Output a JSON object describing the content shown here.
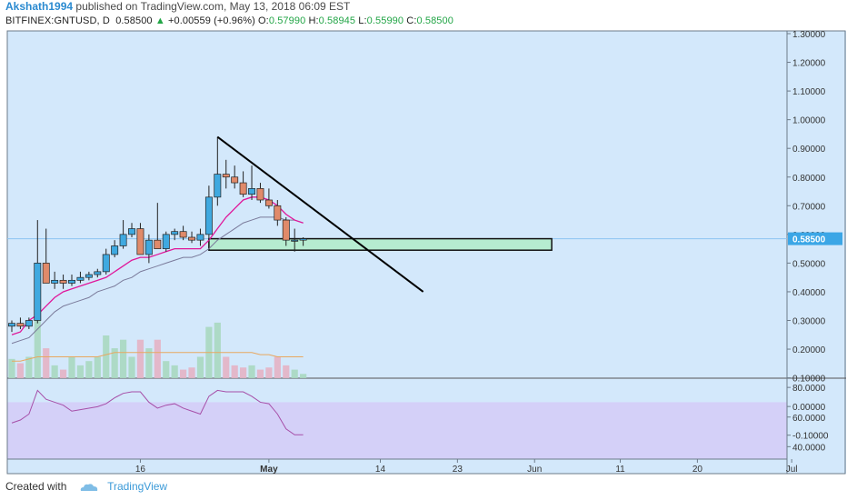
{
  "header": {
    "author": "Akshath1994",
    "published_text": "published on TradingView.com, May 13, 2018 06:09 EST",
    "symbol": "BITFINEX:GNTUSD, D",
    "last": "0.58500",
    "change_arrow": "▲",
    "change": "+0.00559 (+0.96%)",
    "open_label": "O:",
    "open": "0.57990",
    "high_label": "H:",
    "high": "0.58945",
    "low_label": "L:",
    "low": "0.55990",
    "close_label": "C:",
    "close": "0.58500"
  },
  "footer": {
    "created_with": "Created with",
    "brand": "TradingView"
  },
  "colors": {
    "bg": "#d3e8fb",
    "rsi_band": "#d4d0f8",
    "up": "#3fa9e0",
    "down": "#e08a6a",
    "vol_up": "#a8d8c0",
    "vol_down": "#e4b2c4",
    "ema": "#e0179a",
    "sma": "#7a7a9a",
    "rsi": "#a64fa8",
    "zone": "#b6ecd0",
    "price_tag": "#3ba6e6"
  },
  "chart_data": {
    "type": "candlestick",
    "price_axis": {
      "ticks": [
        "1.30000",
        "1.20000",
        "1.10000",
        "1.00000",
        "0.90000",
        "0.80000",
        "0.70000",
        "0.60000",
        "0.50000",
        "0.40000",
        "0.30000",
        "0.20000",
        "0.10000",
        "0.00000",
        "-0.10000"
      ],
      "current": "0.58500"
    },
    "rsi_axis": {
      "ticks": [
        "80.0000",
        "60.0000",
        "40.0000"
      ],
      "band": [
        30,
        70
      ]
    },
    "date_axis": [
      {
        "label": "16",
        "day": 16
      },
      {
        "label": "May",
        "day": 31
      },
      {
        "label": "14",
        "day": 44
      },
      {
        "label": "23",
        "day": 53
      },
      {
        "label": "Jun",
        "day": 62
      },
      {
        "label": "11",
        "day": 72
      },
      {
        "label": "20",
        "day": 81
      },
      {
        "label": "Jul",
        "day": 92
      }
    ],
    "start_date": "2018-04-01",
    "candles": [
      {
        "o": 0.28,
        "h": 0.3,
        "l": 0.26,
        "c": 0.29,
        "v": 0.045
      },
      {
        "o": 0.29,
        "h": 0.31,
        "l": 0.27,
        "c": 0.28,
        "v": 0.035
      },
      {
        "o": 0.28,
        "h": 0.31,
        "l": 0.27,
        "c": 0.3,
        "v": 0.05
      },
      {
        "o": 0.3,
        "h": 0.65,
        "l": 0.29,
        "c": 0.5,
        "v": 0.21
      },
      {
        "o": 0.5,
        "h": 0.62,
        "l": 0.43,
        "c": 0.43,
        "v": 0.07
      },
      {
        "o": 0.43,
        "h": 0.47,
        "l": 0.41,
        "c": 0.44,
        "v": 0.03
      },
      {
        "o": 0.44,
        "h": 0.46,
        "l": 0.41,
        "c": 0.43,
        "v": 0.02
      },
      {
        "o": 0.43,
        "h": 0.46,
        "l": 0.42,
        "c": 0.44,
        "v": 0.05
      },
      {
        "o": 0.44,
        "h": 0.47,
        "l": 0.43,
        "c": 0.45,
        "v": 0.03
      },
      {
        "o": 0.45,
        "h": 0.47,
        "l": 0.44,
        "c": 0.46,
        "v": 0.04
      },
      {
        "o": 0.46,
        "h": 0.48,
        "l": 0.45,
        "c": 0.47,
        "v": 0.05
      },
      {
        "o": 0.47,
        "h": 0.55,
        "l": 0.46,
        "c": 0.53,
        "v": 0.1
      },
      {
        "o": 0.53,
        "h": 0.58,
        "l": 0.52,
        "c": 0.56,
        "v": 0.07
      },
      {
        "o": 0.56,
        "h": 0.65,
        "l": 0.55,
        "c": 0.6,
        "v": 0.09
      },
      {
        "o": 0.6,
        "h": 0.64,
        "l": 0.59,
        "c": 0.62,
        "v": 0.05
      },
      {
        "o": 0.62,
        "h": 0.64,
        "l": 0.53,
        "c": 0.53,
        "v": 0.09
      },
      {
        "o": 0.53,
        "h": 0.6,
        "l": 0.5,
        "c": 0.58,
        "v": 0.07
      },
      {
        "o": 0.58,
        "h": 0.71,
        "l": 0.55,
        "c": 0.55,
        "v": 0.09
      },
      {
        "o": 0.55,
        "h": 0.61,
        "l": 0.54,
        "c": 0.6,
        "v": 0.04
      },
      {
        "o": 0.6,
        "h": 0.62,
        "l": 0.58,
        "c": 0.61,
        "v": 0.03
      },
      {
        "o": 0.61,
        "h": 0.63,
        "l": 0.58,
        "c": 0.59,
        "v": 0.02
      },
      {
        "o": 0.59,
        "h": 0.61,
        "l": 0.57,
        "c": 0.58,
        "v": 0.025
      },
      {
        "o": 0.58,
        "h": 0.62,
        "l": 0.56,
        "c": 0.6,
        "v": 0.05
      },
      {
        "o": 0.6,
        "h": 0.77,
        "l": 0.58,
        "c": 0.73,
        "v": 0.12
      },
      {
        "o": 0.73,
        "h": 0.94,
        "l": 0.7,
        "c": 0.81,
        "v": 0.13
      },
      {
        "o": 0.81,
        "h": 0.86,
        "l": 0.76,
        "c": 0.8,
        "v": 0.05
      },
      {
        "o": 0.8,
        "h": 0.84,
        "l": 0.76,
        "c": 0.78,
        "v": 0.03
      },
      {
        "o": 0.78,
        "h": 0.82,
        "l": 0.73,
        "c": 0.74,
        "v": 0.025
      },
      {
        "o": 0.74,
        "h": 0.84,
        "l": 0.72,
        "c": 0.76,
        "v": 0.03
      },
      {
        "o": 0.76,
        "h": 0.78,
        "l": 0.71,
        "c": 0.72,
        "v": 0.02
      },
      {
        "o": 0.72,
        "h": 0.76,
        "l": 0.69,
        "c": 0.7,
        "v": 0.025
      },
      {
        "o": 0.7,
        "h": 0.72,
        "l": 0.63,
        "c": 0.65,
        "v": 0.05
      },
      {
        "o": 0.65,
        "h": 0.66,
        "l": 0.56,
        "c": 0.58,
        "v": 0.03
      },
      {
        "o": 0.58,
        "h": 0.62,
        "l": 0.54,
        "c": 0.58,
        "v": 0.02
      },
      {
        "o": 0.58,
        "h": 0.59,
        "l": 0.56,
        "c": 0.585,
        "v": 0.01
      }
    ],
    "ema_line": [
      0.25,
      0.26,
      0.3,
      0.32,
      0.35,
      0.38,
      0.4,
      0.41,
      0.42,
      0.43,
      0.44,
      0.45,
      0.47,
      0.49,
      0.51,
      0.52,
      0.52,
      0.53,
      0.54,
      0.55,
      0.55,
      0.55,
      0.55,
      0.58,
      0.62,
      0.66,
      0.69,
      0.72,
      0.73,
      0.73,
      0.72,
      0.7,
      0.67,
      0.65,
      0.64
    ],
    "sma_line": [
      0.22,
      0.23,
      0.24,
      0.27,
      0.3,
      0.33,
      0.35,
      0.36,
      0.37,
      0.38,
      0.4,
      0.41,
      0.42,
      0.44,
      0.45,
      0.47,
      0.48,
      0.49,
      0.5,
      0.51,
      0.52,
      0.52,
      0.53,
      0.55,
      0.58,
      0.6,
      0.62,
      0.64,
      0.65,
      0.66,
      0.66,
      0.66,
      0.65,
      0.65,
      0.64
    ],
    "vol_ma": [
      0.04,
      0.04,
      0.045,
      0.05,
      0.05,
      0.05,
      0.05,
      0.05,
      0.05,
      0.05,
      0.05,
      0.055,
      0.06,
      0.06,
      0.06,
      0.06,
      0.06,
      0.06,
      0.06,
      0.06,
      0.06,
      0.06,
      0.06,
      0.06,
      0.06,
      0.06,
      0.06,
      0.06,
      0.06,
      0.055,
      0.055,
      0.05,
      0.05,
      0.05,
      0.05
    ],
    "rsi": [
      56,
      58,
      62,
      78,
      72,
      70,
      68,
      64,
      65,
      66,
      67,
      69,
      73,
      76,
      77,
      77,
      70,
      66,
      68,
      69,
      66,
      64,
      62,
      74,
      78,
      77,
      77,
      77,
      74,
      70,
      69,
      62,
      52,
      48,
      48
    ],
    "trendline": {
      "from": {
        "day": 25,
        "price": 0.94
      },
      "to": {
        "day": 49,
        "price": 0.4
      }
    },
    "support_zone": {
      "from_day": 24,
      "to_day": 64,
      "top": 0.585,
      "bottom": 0.545
    }
  }
}
